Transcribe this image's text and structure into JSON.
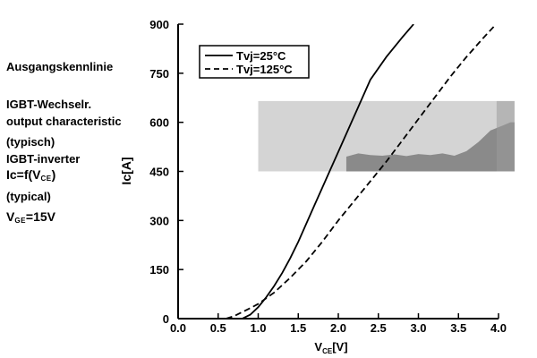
{
  "titles": {
    "de_line1": "Ausgangskennlinie",
    "de_line2": "IGBT-Wechselr.",
    "de_line3": "(typisch)",
    "en_line1": "output characteristic",
    "en_line2": "IGBT-inverter",
    "en_line3": "(typical)",
    "formula1_prefix": "Ic=f(V",
    "formula1_sub": "CE",
    "formula1_suffix": ")",
    "formula2_prefix": "V",
    "formula2_sub": "GE",
    "formula2_suffix": "=15V"
  },
  "chart_data": {
    "type": "line",
    "xlabel_main": "V",
    "xlabel_sub": "CE",
    "xlabel_unit": "[V]",
    "ylabel": "Ic[A]",
    "xlim": [
      0.0,
      4.0
    ],
    "ylim": [
      0,
      900
    ],
    "x_ticks": [
      "0.0",
      "0.5",
      "1.0",
      "1.5",
      "2.0",
      "2.5",
      "3.0",
      "3.5",
      "4.0"
    ],
    "x_tick_values": [
      0,
      0.5,
      1.0,
      1.5,
      2.0,
      2.5,
      3.0,
      3.5,
      4.0
    ],
    "y_ticks": [
      "0",
      "150",
      "300",
      "450",
      "600",
      "750",
      "900"
    ],
    "y_tick_values": [
      0,
      150,
      300,
      450,
      600,
      750,
      900
    ],
    "grid": false,
    "legend_position": "top-left",
    "series": [
      {
        "name": "Tvj=25°C",
        "style": "solid",
        "color": "#000000",
        "points": [
          [
            0.8,
            0
          ],
          [
            0.9,
            12
          ],
          [
            1.0,
            35
          ],
          [
            1.1,
            65
          ],
          [
            1.2,
            100
          ],
          [
            1.3,
            140
          ],
          [
            1.4,
            185
          ],
          [
            1.5,
            235
          ],
          [
            1.6,
            290
          ],
          [
            1.7,
            345
          ],
          [
            1.8,
            400
          ],
          [
            1.9,
            455
          ],
          [
            2.0,
            510
          ],
          [
            2.2,
            620
          ],
          [
            2.4,
            730
          ],
          [
            2.6,
            800
          ],
          [
            2.8,
            860
          ],
          [
            2.94,
            900
          ]
        ]
      },
      {
        "name": "Tvj=125°C",
        "style": "dashed",
        "color": "#000000",
        "points": [
          [
            0.6,
            0
          ],
          [
            0.7,
            8
          ],
          [
            0.8,
            20
          ],
          [
            0.9,
            32
          ],
          [
            1.0,
            45
          ],
          [
            1.2,
            80
          ],
          [
            1.4,
            125
          ],
          [
            1.6,
            175
          ],
          [
            1.8,
            235
          ],
          [
            2.0,
            300
          ],
          [
            2.2,
            360
          ],
          [
            2.4,
            420
          ],
          [
            2.6,
            480
          ],
          [
            2.8,
            545
          ],
          [
            3.0,
            610
          ],
          [
            3.2,
            675
          ],
          [
            3.4,
            740
          ],
          [
            3.6,
            800
          ],
          [
            3.8,
            855
          ],
          [
            3.97,
            900
          ]
        ]
      }
    ],
    "overlay_region": {
      "x_range": [
        1.0,
        4.2
      ],
      "y_range": [
        450,
        665
      ],
      "light_color": "#d4d4d4",
      "dark_color": "#8a8a8a"
    }
  }
}
